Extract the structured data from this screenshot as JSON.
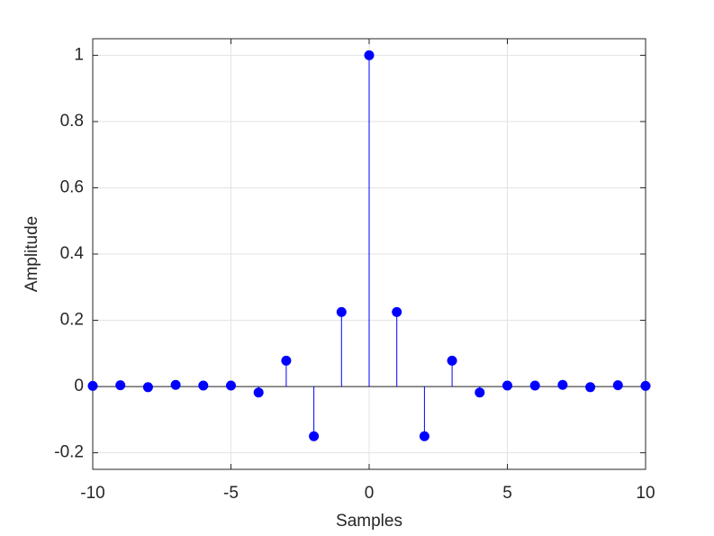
{
  "chart_data": {
    "type": "stem",
    "xlabel": "Samples",
    "ylabel": "Amplitude",
    "x": [
      -10,
      -9,
      -8,
      -7,
      -6,
      -5,
      -4,
      -3,
      -2,
      -1,
      0,
      1,
      2,
      3,
      4,
      5,
      6,
      7,
      8,
      9,
      10
    ],
    "values": [
      0.002,
      0.004,
      -0.002,
      0.005,
      0.003,
      0.003,
      -0.018,
      0.078,
      -0.15,
      0.225,
      1,
      0.225,
      -0.15,
      0.078,
      -0.018,
      0.003,
      0.003,
      0.005,
      -0.002,
      0.004,
      0.002
    ],
    "color": "#0000ff",
    "xlim": [
      -10,
      10
    ],
    "xticks": [
      -10,
      -5,
      0,
      5,
      10
    ],
    "ylim": [
      -0.25,
      1.05
    ],
    "yticks": [
      -0.2,
      0,
      0.2,
      0.4,
      0.6,
      0.8,
      1
    ],
    "grid": true
  }
}
